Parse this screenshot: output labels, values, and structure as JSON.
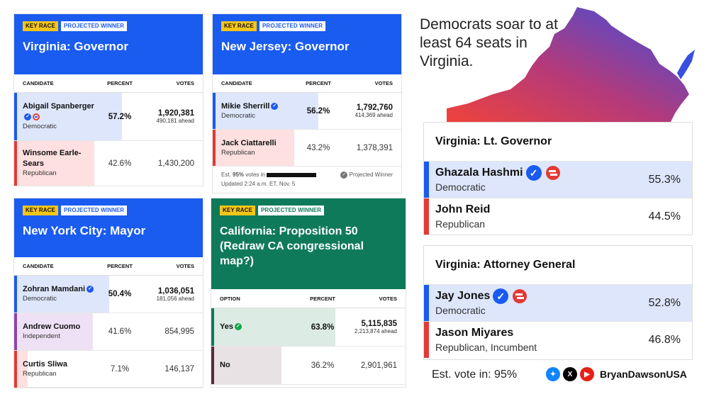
{
  "colors": {
    "dem_blue": "#1a5bf0",
    "rep_red": "#e53935",
    "ind_purple": "#8e44ad",
    "ca_green": "#0f7a5a",
    "ca_dark": "#5a2a3e"
  },
  "va_gov": {
    "badge_key": "KEY RACE",
    "badge_win": "PROJECTED WINNER",
    "title": "Virginia: Governor",
    "cols": [
      "CANDIDATE",
      "PERCENT",
      "VOTES"
    ],
    "rows": [
      {
        "name": "Abigail Spanberger",
        "party": "Democratic",
        "percent": "57.2%",
        "votes": "1,920,381",
        "ahead": "490,181 ahead",
        "share": 57.2
      },
      {
        "name": "Winsome Earle-Sears",
        "party": "Republican",
        "percent": "42.6%",
        "votes": "1,430,200",
        "share": 42.6
      }
    ]
  },
  "nj_gov": {
    "badge_key": "KEY RACE",
    "badge_win": "PROJECTED WINNER",
    "title": "New Jersey: Governor",
    "cols": [
      "CANDIDATE",
      "PERCENT",
      "VOTES"
    ],
    "rows": [
      {
        "name": "Mikie Sherrill",
        "party": "Democratic",
        "percent": "56.2%",
        "votes": "1,792,760",
        "ahead": "414,369 ahead",
        "share": 56.2
      },
      {
        "name": "Jack Ciattarelli",
        "party": "Republican",
        "percent": "43.2%",
        "votes": "1,378,391",
        "share": 43.2
      }
    ],
    "foot_est_prefix": "Est.",
    "foot_est_pct": "95%",
    "foot_est_suffix": "votes in",
    "foot_projected": "Projected Winner",
    "foot_updated": "Updated 2:24 a.m. ET, Nov. 5"
  },
  "nyc_mayor": {
    "badge_key": "KEY RACE",
    "badge_win": "PROJECTED WINNER",
    "title": "New York City: Mayor",
    "cols": [
      "CANDIDATE",
      "PERCENT",
      "VOTES"
    ],
    "rows": [
      {
        "name": "Zohran Mamdani",
        "party": "Democratic",
        "percent": "50.4%",
        "votes": "1,036,051",
        "ahead": "181,056 ahead",
        "share": 50.4
      },
      {
        "name": "Andrew Cuomo",
        "party": "Independent",
        "percent": "41.6%",
        "votes": "854,995",
        "share": 41.6
      },
      {
        "name": "Curtis Sliwa",
        "party": "Republican",
        "percent": "7.1%",
        "votes": "146,137",
        "share": 7.1
      }
    ]
  },
  "ca_prop": {
    "badge_key": "KEY RACE",
    "badge_win": "PROJECTED WINNER",
    "title": "California: Proposition 50 (Redraw CA congressional map?)",
    "cols": [
      "OPTION",
      "PERCENT",
      "VOTES"
    ],
    "rows": [
      {
        "name": "Yes",
        "percent": "63.8%",
        "votes": "5,115,835",
        "ahead": "2,213,874 ahead",
        "share": 63.8
      },
      {
        "name": "No",
        "percent": "36.2%",
        "votes": "2,901,961",
        "share": 36.2
      }
    ]
  },
  "right": {
    "headline": "Democrats soar to at least 64 seats in Virginia.",
    "lt_gov": {
      "title": "Virginia: Lt. Governor",
      "rows": [
        {
          "name": "Ghazala Hashmi",
          "party": "Democratic",
          "percent": "55.3%"
        },
        {
          "name": "John Reid",
          "party": "Republican",
          "percent": "44.5%"
        }
      ]
    },
    "ag": {
      "title": "Virginia: Attorney General",
      "rows": [
        {
          "name": "Jay Jones",
          "party": "Democratic",
          "percent": "52.8%"
        },
        {
          "name": "Jason Miyares",
          "party": "Republican, Incumbent",
          "percent": "46.8%"
        }
      ]
    },
    "est_vote": "Est. vote in: 95%",
    "handle": "BryanDawsonUSA",
    "icons": [
      "bluesky-icon",
      "x-icon",
      "youtube-icon"
    ]
  }
}
